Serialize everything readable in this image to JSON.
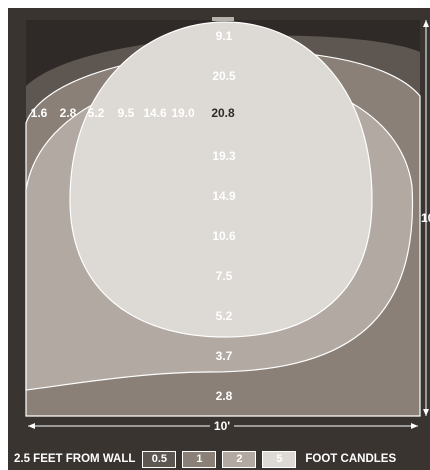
{
  "diagram": {
    "width_label": "10'",
    "height_label_partial": "10",
    "horizontal_values": [
      "1.6",
      "2.8",
      "5.2",
      "9.5",
      "14.6",
      "19.0",
      "20.8"
    ],
    "vertical_values": [
      "9.1",
      "20.5",
      "19.3",
      "14.9",
      "10.6",
      "7.5",
      "5.2",
      "3.7",
      "2.8"
    ]
  },
  "legend": {
    "caption": "2.5 FEET FROM WALL",
    "swatches": [
      {
        "label": "0.5",
        "color": "#5e5650"
      },
      {
        "label": "1",
        "color": "#8a8078"
      },
      {
        "label": "2",
        "color": "#b2a9a3"
      },
      {
        "label": "5",
        "color": "#ddd9d4"
      }
    ],
    "unit": "FOOT CANDLES"
  },
  "colors": {
    "frame": "#3a3431",
    "background": "#2f2a27",
    "zone_0_5": "#5e5650",
    "zone_1": "#8a8078",
    "zone_2": "#b2a9a3",
    "zone_5": "#ddd9d4",
    "emphasis_text": "#2f2a27"
  }
}
